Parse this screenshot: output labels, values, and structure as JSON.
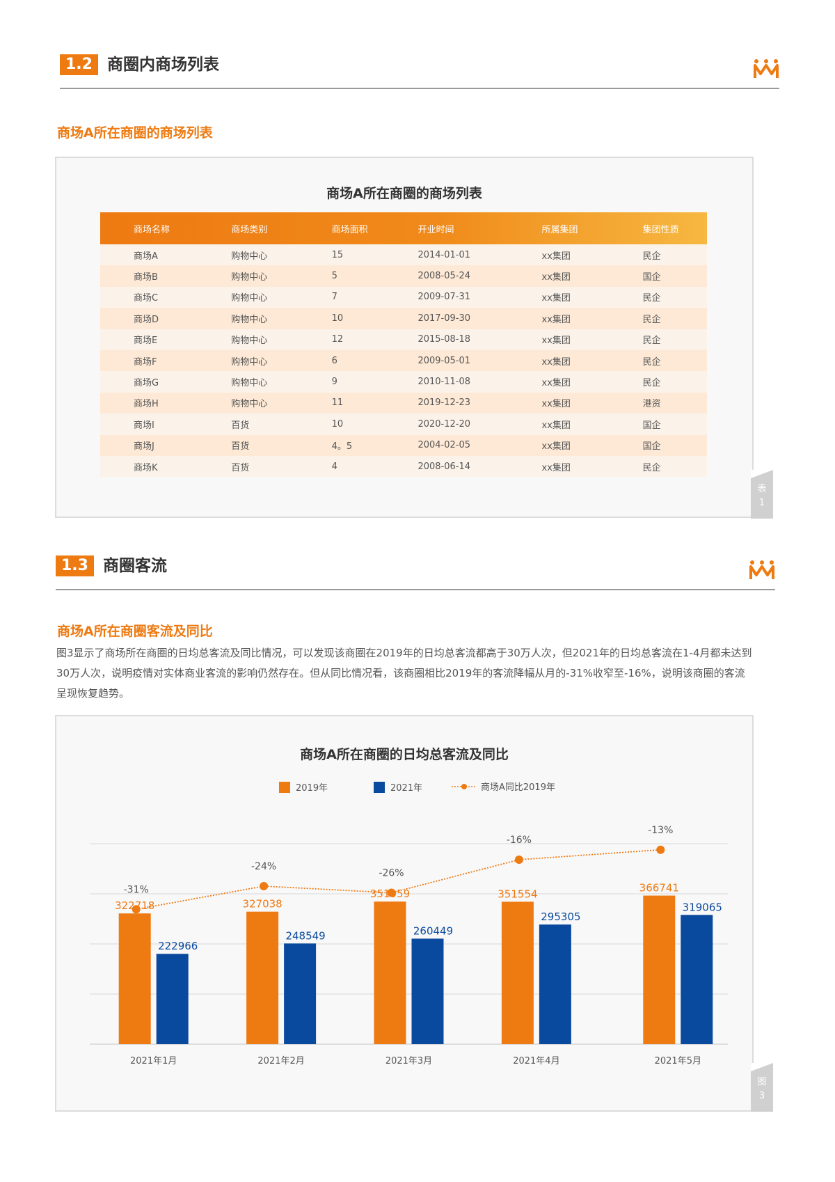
{
  "sections": {
    "s12": {
      "num": "1.2",
      "title": "商圈内商场列表"
    },
    "s13": {
      "num": "1.3",
      "title": "商圈客流"
    }
  },
  "table_section": {
    "subhead": "商场A所在商圈的商场列表",
    "panel_title": "商场A所在商圈的商场列表",
    "tag": "表1",
    "headers": [
      "商场名称",
      "商场类别",
      "商场面积",
      "开业时间",
      "所属集团",
      "集团性质"
    ],
    "rows": [
      [
        "商场A",
        "购物中心",
        "15",
        "2014-01-01",
        "xx集团",
        "民企"
      ],
      [
        "商场B",
        "购物中心",
        "5",
        "2008-05-24",
        "xx集团",
        "国企"
      ],
      [
        "商场C",
        "购物中心",
        "7",
        "2009-07-31",
        "xx集团",
        "民企"
      ],
      [
        "商场D",
        "购物中心",
        "10",
        "2017-09-30",
        "xx集团",
        "民企"
      ],
      [
        "商场E",
        "购物中心",
        "12",
        "2015-08-18",
        "xx集团",
        "民企"
      ],
      [
        "商场F",
        "购物中心",
        "6",
        "2009-05-01",
        "xx集团",
        "民企"
      ],
      [
        "商场G",
        "购物中心",
        "9",
        "2010-11-08",
        "xx集团",
        "民企"
      ],
      [
        "商场H",
        "购物中心",
        "11",
        "2019-12-23",
        "xx集团",
        "港资"
      ],
      [
        "商场I",
        "百货",
        "10",
        "2020-12-20",
        "xx集团",
        "国企"
      ],
      [
        "商场J",
        "百货",
        "4。5",
        "2004-02-05",
        "xx集团",
        "国企"
      ],
      [
        "商场K",
        "百货",
        "4",
        "2008-06-14",
        "xx集团",
        "民企"
      ]
    ]
  },
  "traffic_section": {
    "subhead": "商场A所在商圈客流及同比",
    "paragraph": "图3显示了商场所在商圈的日均总客流及同比情况，可以发现该商圈在2019年的日均总客流都高于30万人次，但2021年的日均总客流在1-4月都未达到30万人次，说明疫情对实体商业客流的影响仍然存在。但从同比情况看，该商圈相比2019年的客流降幅从月的-31%收窄至-16%，说明该商圈的客流呈现恢复趋势。",
    "tag": "图3"
  },
  "chart_data": {
    "type": "bar",
    "title": "商场A所在商圈的日均总客流及同比",
    "categories": [
      "2021年1月",
      "2021年2月",
      "2021年3月",
      "2021年4月",
      "2021年5月"
    ],
    "series": [
      {
        "name": "2019年",
        "values": [
          322718,
          327038,
          351959,
          351554,
          366741
        ],
        "color": "#ee7a12"
      },
      {
        "name": "2021年",
        "values": [
          222966,
          248549,
          260449,
          295305,
          319065
        ],
        "color": "#0a4a9e"
      }
    ],
    "line_series": {
      "name": "商场A同比2019年",
      "type": "line",
      "values": [
        -31,
        -24,
        -26,
        -16,
        -13
      ],
      "labels": [
        "-31%",
        "-24%",
        "-26%",
        "-16%",
        "-13%"
      ],
      "color": "#ee7a12"
    },
    "legend_position": "top-center",
    "grid": true
  }
}
